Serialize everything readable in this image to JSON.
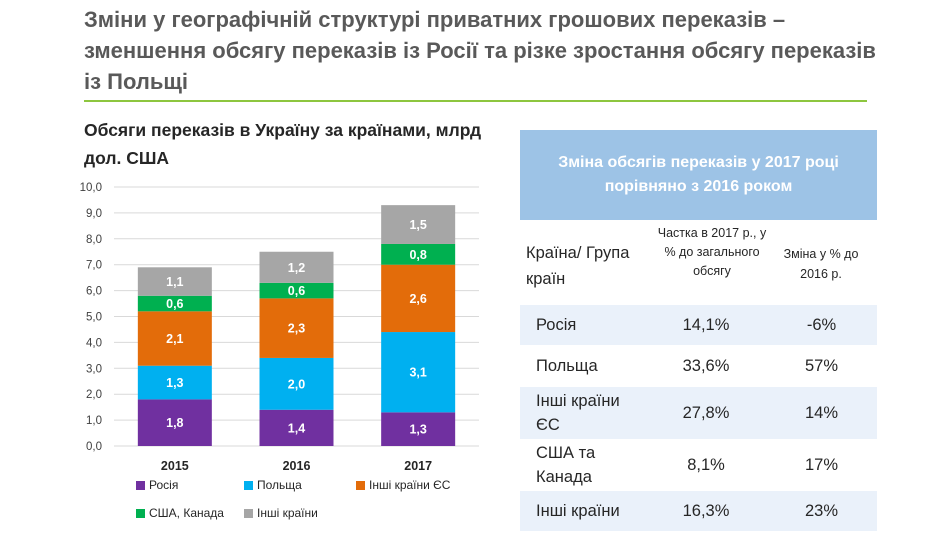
{
  "slide_title": "Зміни у географічній структурі приватних грошових переказів – зменшення обсягу переказів із Росії та різке зростання обсягу переказів із Польщі",
  "colors": {
    "russia": "#7030a0",
    "poland": "#00b0f0",
    "eu": "#e36c0a",
    "usa": "#00b050",
    "other": "#a6a6a6",
    "title_rule": "#8dc63f",
    "table_header": "#9dc3e6",
    "row_even": "#eaf1fa"
  },
  "chart_data": {
    "type": "bar",
    "stacked": true,
    "title": "Обсяги переказів в Україну за країнами, млрд дол. США",
    "categories": [
      "2015",
      "2016",
      "2017"
    ],
    "series": [
      {
        "name": "Росія",
        "values": [
          1.8,
          1.4,
          1.3
        ],
        "labels": [
          "1,8",
          "1,4",
          "1,3"
        ],
        "color": "#7030a0"
      },
      {
        "name": "Польща",
        "values": [
          1.3,
          2.0,
          3.1
        ],
        "labels": [
          "1,3",
          "2,0",
          "3,1"
        ],
        "color": "#00b0f0"
      },
      {
        "name": "Інші країни ЄС",
        "values": [
          2.1,
          2.3,
          2.6
        ],
        "labels": [
          "2,1",
          "2,3",
          "2,6"
        ],
        "color": "#e36c0a"
      },
      {
        "name": "США, Канада",
        "values": [
          0.6,
          0.6,
          0.8
        ],
        "labels": [
          "0,6",
          "0,6",
          "0,8"
        ],
        "color": "#00b050"
      },
      {
        "name": "Інші країни",
        "values": [
          1.1,
          1.2,
          1.5
        ],
        "labels": [
          "1,1",
          "1,2",
          "1,5"
        ],
        "color": "#a6a6a6"
      }
    ],
    "ylim": [
      0,
      10
    ],
    "yticks": [
      "0,0",
      "1,0",
      "2,0",
      "3,0",
      "4,0",
      "5,0",
      "6,0",
      "7,0",
      "8,0",
      "9,0",
      "10,0"
    ],
    "grid": true,
    "legend_position": "bottom"
  },
  "table": {
    "title": "Зміна обсягів переказів у 2017 році порівняно з 2016 роком",
    "col1_header": "Країна/ Група країн",
    "col2_header": "Частка в 2017 р., у % до загального обсягу",
    "col3_header": "Зміна у % до 2016 р.",
    "rows": [
      {
        "country": "Росія",
        "share": "14,1%",
        "change": "-6%"
      },
      {
        "country": "Польща",
        "share": "33,6%",
        "change": "57%"
      },
      {
        "country": "Інші країни ЄС",
        "share": "27,8%",
        "change": "14%"
      },
      {
        "country": "США та Канада",
        "share": "8,1%",
        "change": "17%"
      },
      {
        "country": "Інші країни",
        "share": "16,3%",
        "change": "23%"
      }
    ]
  }
}
